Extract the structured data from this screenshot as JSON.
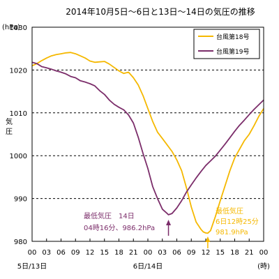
{
  "chart_data": {
    "type": "line",
    "title": "2014年10月5日～6日と13日～14日の気圧の推移",
    "unit_label": "(hPa)",
    "ylabel": "気圧",
    "x_unit": "(時)",
    "ylim": [
      980,
      1030
    ],
    "yticks": [
      980,
      990,
      1000,
      1010,
      1020,
      1030
    ],
    "xlim": [
      0,
      48
    ],
    "xtick_labels": [
      "00",
      "03",
      "06",
      "09",
      "12",
      "15",
      "18",
      "21",
      "00",
      "03",
      "06",
      "09",
      "12",
      "15",
      "18",
      "21",
      "00"
    ],
    "date_labels": [
      {
        "text": "5日/13日",
        "hour": 0
      },
      {
        "text": "6日/14日",
        "hour": 24
      }
    ],
    "grid": "dashed horizontal at 990, 1000, 1010 and 1020",
    "legend_placement": "top-right",
    "series": [
      {
        "name": "台風第18号",
        "color": "#f5b800",
        "x": [
          0,
          1,
          2,
          3,
          4,
          5,
          6,
          7,
          8,
          9,
          10,
          11,
          12,
          13,
          14,
          15,
          16,
          17,
          18,
          19,
          20,
          21,
          22,
          23,
          24,
          25,
          26,
          27,
          28,
          29,
          30,
          31,
          32,
          33,
          34,
          35,
          35.5,
          36,
          36.42,
          37,
          38,
          39,
          40,
          41,
          42,
          43,
          44,
          45,
          46,
          47,
          48
        ],
        "y": [
          1021.0,
          1021.5,
          1022.2,
          1022.8,
          1023.3,
          1023.6,
          1023.8,
          1024.0,
          1024.1,
          1023.8,
          1023.3,
          1022.8,
          1022.1,
          1021.8,
          1021.9,
          1022.0,
          1021.4,
          1020.6,
          1019.8,
          1019.2,
          1019.5,
          1018.2,
          1016.5,
          1014.0,
          1011.0,
          1008.0,
          1005.5,
          1004.0,
          1002.5,
          1001.0,
          999.0,
          996.5,
          992.5,
          988.0,
          984.5,
          982.8,
          982.2,
          981.95,
          981.9,
          982.5,
          985.8,
          989.5,
          993.0,
          996.5,
          999.5,
          1001.5,
          1003.5,
          1005.0,
          1007.0,
          1009.2,
          1011.0
        ]
      },
      {
        "name": "台風第19号",
        "color": "#7b2d6a",
        "x": [
          0,
          1,
          2,
          3,
          4,
          5,
          6,
          7,
          8,
          9,
          10,
          11,
          12,
          13,
          14,
          15,
          16,
          17,
          18,
          19,
          20,
          21,
          22,
          23,
          24,
          25,
          26,
          27,
          28,
          28.27,
          29,
          30,
          31,
          32,
          33,
          34,
          35,
          36,
          37,
          38,
          39,
          40,
          41,
          42,
          43,
          44,
          45,
          46,
          47,
          48
        ],
        "y": [
          1021.8,
          1021.5,
          1020.8,
          1020.5,
          1020.2,
          1019.8,
          1019.5,
          1019.1,
          1018.5,
          1018.2,
          1017.5,
          1017.2,
          1016.8,
          1016.3,
          1015.2,
          1014.3,
          1013.0,
          1012.0,
          1011.3,
          1010.7,
          1009.5,
          1007.6,
          1004.3,
          1000.5,
          997.0,
          992.8,
          990.0,
          987.5,
          986.5,
          986.2,
          986.5,
          987.8,
          989.5,
          991.5,
          993.2,
          994.8,
          996.3,
          997.7,
          998.8,
          999.9,
          1001.3,
          1002.7,
          1004.2,
          1005.7,
          1007.1,
          1008.3,
          1009.6,
          1010.8,
          1011.9,
          1013.0
        ]
      }
    ],
    "annotations": [
      {
        "series": 1,
        "x": 28.27,
        "y": 986.2,
        "line1": "最低気圧　14日",
        "line2": "04時16分、986.2hPa",
        "color": "#7b2d6a"
      },
      {
        "series": 0,
        "x": 36.42,
        "y": 981.9,
        "line1": "最低気圧",
        "line2": "6日12時25分",
        "line3": "981.9hPa",
        "color": "#f5b800"
      }
    ]
  }
}
